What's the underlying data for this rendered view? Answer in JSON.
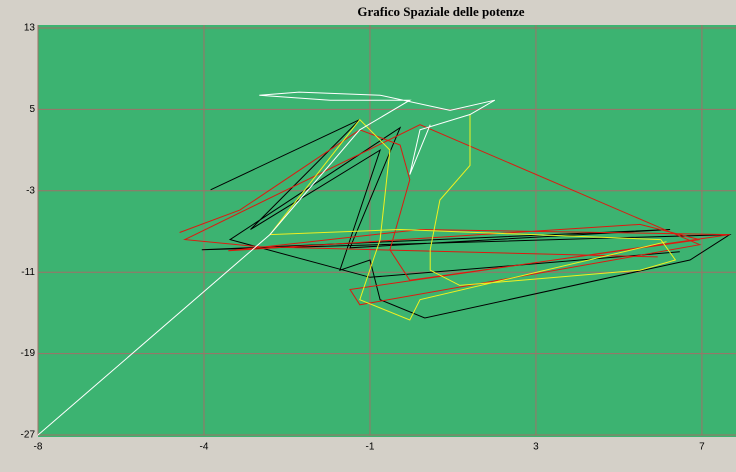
{
  "chart_data": {
    "type": "line",
    "title": "Grafico Spaziale delle potenze",
    "xlim": [
      -8,
      7.77
    ],
    "ylim": [
      -27,
      13
    ],
    "xticks": [
      -8,
      {
        "value": -4.25,
        "label": "-4"
      },
      {
        "value": -0.5,
        "label": "-1"
      },
      {
        "value": 3.25,
        "label": "3"
      },
      7
    ],
    "yticks": [
      -27,
      -19,
      -11,
      -3,
      5,
      13
    ],
    "grid": true,
    "background": "#3cb371",
    "series": [
      {
        "color": "#000000",
        "x": [
          -4.1,
          -0.73,
          -3.2,
          -0.27,
          -1.18,
          -0.5,
          -0.27,
          0.74,
          6.73,
          7.63,
          -4.3,
          6.28,
          -0.95,
          0.18,
          -3.66,
          -0.5,
          6.5
        ],
        "values": [
          -2.9,
          4.0,
          -6.8,
          1.0,
          -10.8,
          -9.8,
          -13.7,
          -15.5,
          -9.8,
          -7.3,
          -8.8,
          -6.8,
          -8.6,
          3.2,
          -7.8,
          -11.5,
          -9.0
        ]
      },
      {
        "color": "#dd1a10",
        "x": [
          -4.8,
          -3.44,
          -0.73,
          0.18,
          0.4,
          -0.05,
          0.4,
          6.95,
          5.6,
          -3.7,
          0.63,
          7.63,
          -0.95,
          -0.73,
          6.95,
          0.63,
          -4.68,
          -3.0,
          6.0
        ],
        "values": [
          -7.1,
          -4.9,
          3.0,
          1.5,
          -1.9,
          -8.8,
          -11.8,
          -7.8,
          -6.3,
          -8.9,
          -6.8,
          -7.3,
          -12.7,
          -14.2,
          -8.3,
          3.5,
          -7.8,
          -8.5,
          -9.5
        ]
      },
      {
        "color": "#f0f020",
        "x": [
          1.76,
          1.76,
          1.08,
          0.86,
          0.86,
          1.53,
          5.6,
          6.4,
          6.07,
          0.18,
          -2.76,
          -0.73,
          -0.05,
          -0.27,
          -0.73,
          0.4,
          0.63,
          6.2
        ],
        "values": [
          4.5,
          -0.5,
          -3.9,
          -8.8,
          -10.8,
          -12.3,
          -10.8,
          -9.8,
          -7.8,
          -6.8,
          -7.3,
          4.0,
          1.0,
          -7.8,
          -13.7,
          -15.7,
          -13.7,
          -8.0
        ]
      },
      {
        "color": "#ffffff",
        "x": [
          -8,
          -2.76,
          -0.73,
          0.4,
          -1.4,
          -3.0,
          -2.1,
          -0.27,
          1.31,
          2.32,
          1.76,
          0.63,
          0.4,
          0.86
        ],
        "values": [
          -27,
          -7.3,
          3.0,
          5.9,
          5.9,
          6.4,
          6.7,
          6.4,
          4.9,
          5.9,
          4.5,
          3.0,
          -1.4,
          3.5
        ]
      }
    ]
  }
}
